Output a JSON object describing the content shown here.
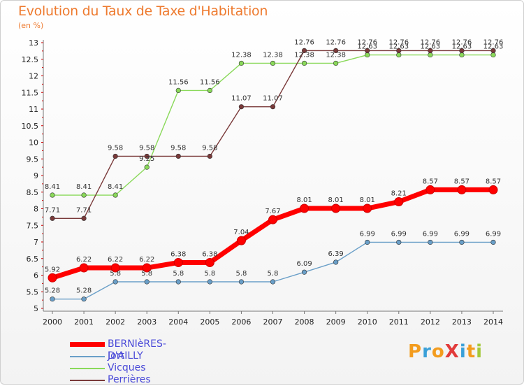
{
  "chart": {
    "title": "Evolution du Taux de Taxe d'Habitation",
    "unit": "(en %)"
  },
  "logo": {
    "text": "ProXiti",
    "letters": [
      "P",
      "r",
      "o",
      "X",
      "i",
      "t",
      "i"
    ],
    "colors": [
      "#f39c1e",
      "#3aa0d8",
      "#f39c1e",
      "#e23b3b",
      "#3aa0d8",
      "#f39c1e",
      "#a4c93a"
    ]
  },
  "chart_data": {
    "type": "line",
    "title": "Evolution du Taux de Taxe d'Habitation",
    "ylabel": "(en %)",
    "xlabel": "",
    "x": [
      "2000",
      "2001",
      "2002",
      "2003",
      "2004",
      "2005",
      "2006",
      "2007",
      "2008",
      "2009",
      "2010",
      "2011",
      "2012",
      "2013",
      "2014"
    ],
    "ylim": [
      5,
      13
    ],
    "yticks": [
      "5",
      "5.5",
      "6",
      "6.5",
      "7",
      "7.5",
      "8",
      "8.5",
      "9",
      "9.5",
      "10",
      "10.5",
      "11",
      "11.5",
      "12",
      "12.5",
      "13"
    ],
    "grid": false,
    "legend_position": "bottom-left",
    "series": [
      {
        "name": "BERNIèRES-D'AILLY",
        "color": "#ff0000",
        "values": [
          5.92,
          6.22,
          6.22,
          6.22,
          6.38,
          6.38,
          7.04,
          7.67,
          8.01,
          8.01,
          8.01,
          8.21,
          8.57,
          8.57,
          8.57
        ],
        "labels": [
          "5.92",
          "6.22",
          "6.22",
          "6.22",
          "6.38",
          "6.38",
          "7.04",
          "7.67",
          "8.01",
          "8.01",
          "8.01",
          "8.21",
          "8.57",
          "8.57",
          "8.57"
        ]
      },
      {
        "name": "Jort",
        "color": "#6a9fc8",
        "values": [
          5.28,
          5.28,
          5.8,
          5.8,
          5.8,
          5.8,
          5.8,
          5.8,
          6.09,
          6.39,
          6.99,
          6.99,
          6.99,
          6.99,
          6.99
        ],
        "labels": [
          "5.28",
          "5.28",
          "5.8",
          "5.8",
          "5.8",
          "5.8",
          "5.8",
          "5.8",
          "6.09",
          "6.39",
          "6.99",
          "6.99",
          "6.99",
          "6.99",
          "6.99"
        ]
      },
      {
        "name": "Vicques",
        "color": "#8ad95a",
        "values": [
          8.41,
          8.41,
          8.41,
          9.25,
          11.56,
          11.56,
          12.38,
          12.38,
          12.38,
          12.38,
          12.63,
          12.63,
          12.63,
          12.63,
          12.63
        ],
        "labels": [
          "8.41",
          "8.41",
          "8.41",
          "9.25",
          "11.56",
          "11.56",
          "12.38",
          "12.38",
          "12.38",
          "12.38",
          "12.63",
          "12.63",
          "12.63",
          "12.63",
          "12.63"
        ]
      },
      {
        "name": "Perrières",
        "color": "#7a3a3a",
        "values": [
          7.71,
          7.71,
          9.58,
          9.58,
          9.58,
          9.58,
          11.07,
          11.07,
          12.76,
          12.76,
          12.76,
          12.76,
          12.76,
          12.76,
          12.76
        ],
        "labels": [
          "7.71",
          "7.71",
          "9.58",
          "9.58",
          "9.58",
          "9.58",
          "11.07",
          "11.07",
          "12.76",
          "12.76",
          "12.76",
          "12.76",
          "12.76",
          "12.76",
          "12.76"
        ]
      }
    ]
  }
}
